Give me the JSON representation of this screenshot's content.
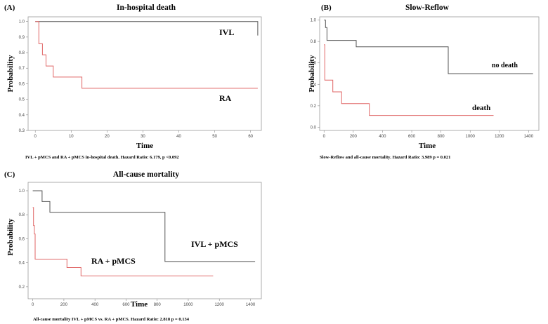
{
  "chart_data": [
    {
      "type": "line",
      "letter": "(A)",
      "title": "In-hospital death",
      "xlabel": "Time",
      "ylabel": "Probability",
      "xlim": [
        -2,
        63
      ],
      "ylim": [
        0.3,
        1.03
      ],
      "xticks": [
        0,
        10,
        20,
        30,
        40,
        50,
        60
      ],
      "yticks": [
        0.3,
        0.4,
        0.5,
        0.6,
        0.7,
        0.8,
        0.9,
        1.0
      ],
      "ytick_labels": [
        "0.3",
        "0.4",
        "0.5",
        "0.6",
        "0.7",
        "0.8",
        "0.9",
        "1.0"
      ],
      "series": [
        {
          "name": "IVL",
          "color": "#555555",
          "x": [
            0,
            62,
            62
          ],
          "y": [
            1.0,
            1.0,
            0.91
          ]
        },
        {
          "name": "RA",
          "color": "#e06666",
          "x": [
            0,
            1,
            2,
            3,
            5,
            13,
            62
          ],
          "y": [
            1.0,
            0.857,
            0.786,
            0.714,
            0.643,
            0.571,
            0.571
          ]
        }
      ],
      "caption": "IVL + pMCS and RA + pMCS in-hospital death. Hazard Ratio: 6.179, p <0.092"
    },
    {
      "type": "line",
      "letter": "(B)",
      "title": "Slow-Reflow",
      "xlabel": "Time",
      "ylabel": "Probability",
      "xlim": [
        -30,
        1470
      ],
      "ylim": [
        -0.03,
        1.03
      ],
      "xticks": [
        0,
        200,
        400,
        600,
        800,
        1000,
        1200,
        1400
      ],
      "yticks": [
        0.0,
        0.2,
        0.4,
        0.6,
        0.8,
        1.0
      ],
      "ytick_labels": [
        "0.0",
        "0.2",
        "0.4",
        "0.6",
        "0.8",
        "1.0"
      ],
      "series": [
        {
          "name": "no death",
          "color": "#555555",
          "x": [
            0,
            10,
            20,
            220,
            850,
            1430
          ],
          "y": [
            1.0,
            0.93,
            0.81,
            0.75,
            0.5,
            0.5
          ]
        },
        {
          "name": "death",
          "color": "#e06666",
          "x": [
            0,
            5,
            60,
            120,
            310,
            1160
          ],
          "y": [
            0.77,
            0.44,
            0.33,
            0.22,
            0.11,
            0.11
          ]
        }
      ],
      "caption": "Slow-Reflow and all-cause mortality. Hazard Ratio: 3.989 p = 0.021"
    },
    {
      "type": "line",
      "letter": "(C)",
      "title": "All-cause mortality",
      "xlabel": "Time",
      "ylabel": "Probability",
      "xlim": [
        -30,
        1470
      ],
      "ylim": [
        0.1,
        1.07
      ],
      "xticks": [
        0,
        200,
        400,
        600,
        800,
        1000,
        1200,
        1400
      ],
      "yticks": [
        0.2,
        0.4,
        0.6,
        0.8,
        1.0
      ],
      "ytick_labels": [
        "0.2",
        "0.4",
        "0.6",
        "0.8",
        "1.0"
      ],
      "series": [
        {
          "name": "IVL + pMCS",
          "color": "#555555",
          "x": [
            0,
            60,
            110,
            850,
            1430
          ],
          "y": [
            1.0,
            0.91,
            0.82,
            0.41,
            0.41
          ]
        },
        {
          "name": "RA + pMCS",
          "color": "#e06666",
          "x": [
            0,
            5,
            10,
            15,
            220,
            310,
            1160
          ],
          "y": [
            0.86,
            0.71,
            0.64,
            0.43,
            0.36,
            0.29,
            0.29
          ]
        }
      ],
      "caption": "All-cause mortality IVL + pMCS vs. RA + pMCS. Hazard Ratio: 2.818 p = 0.134"
    }
  ]
}
